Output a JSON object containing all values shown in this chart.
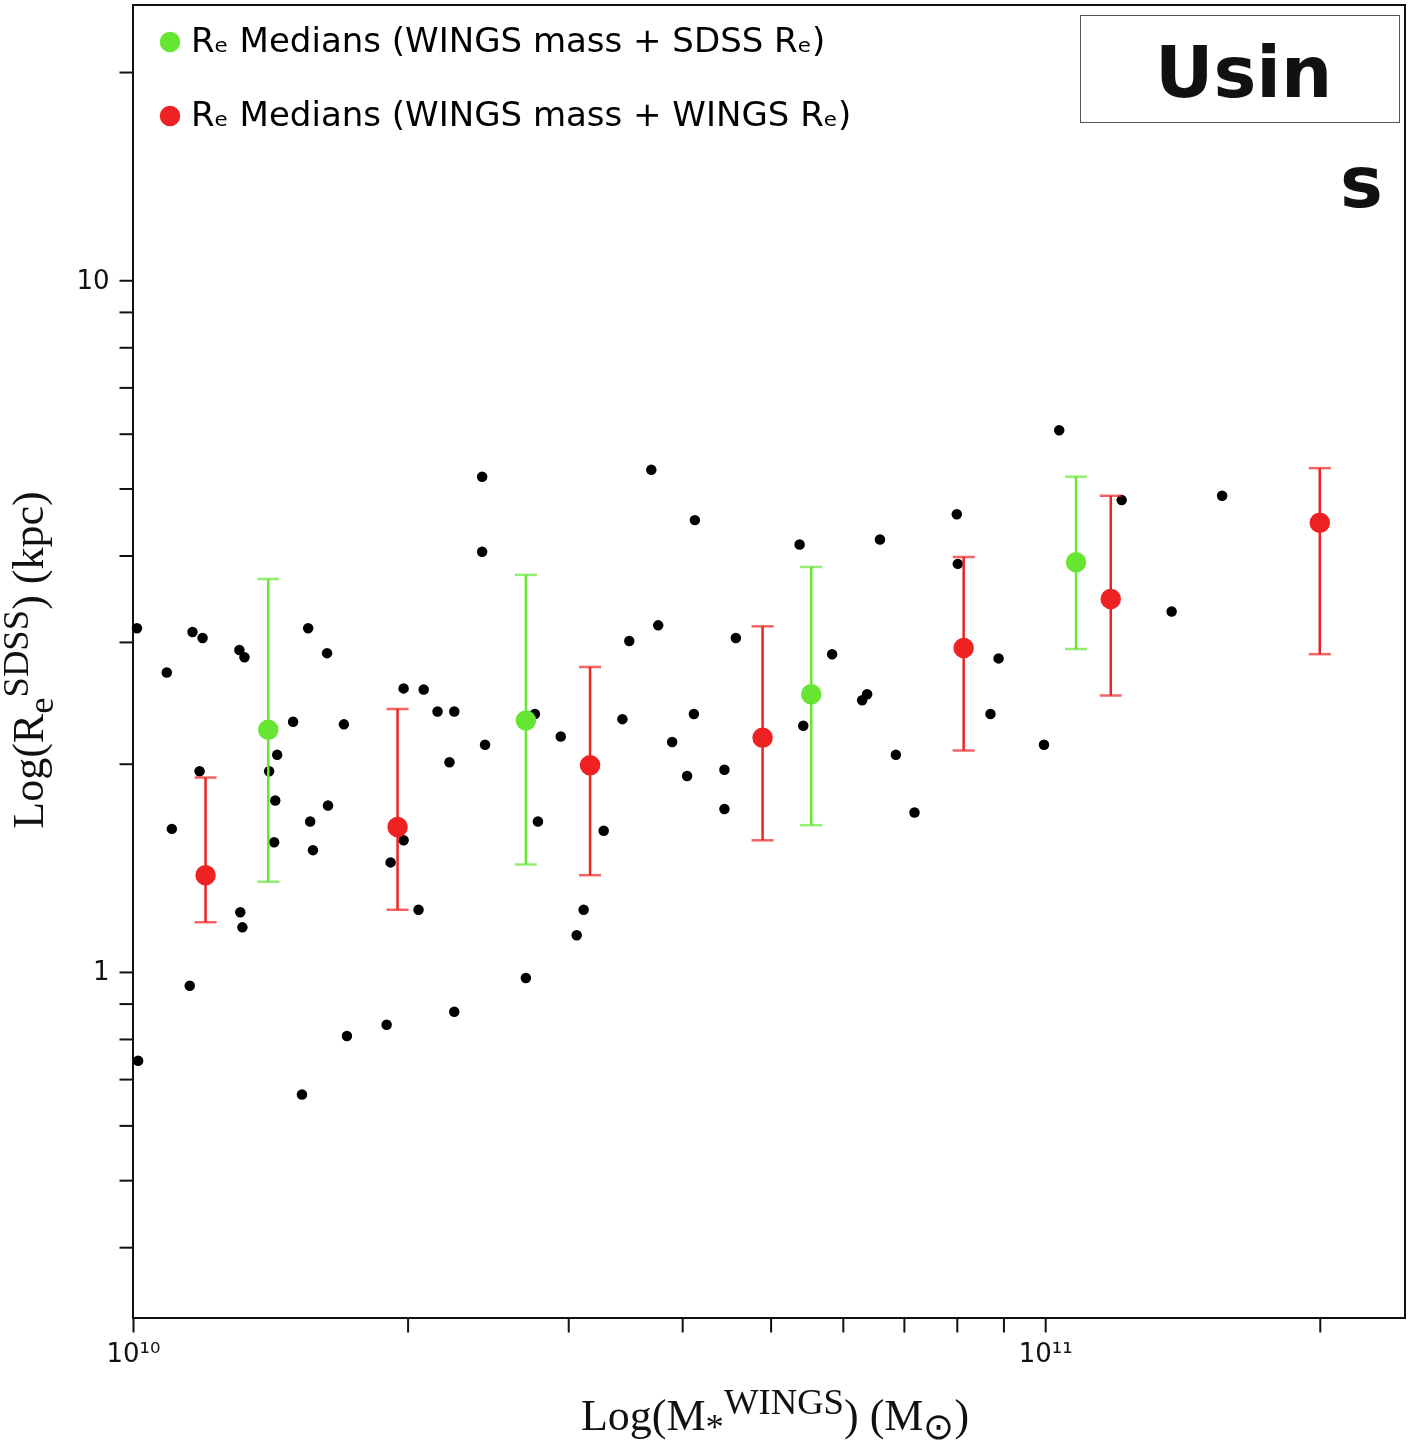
{
  "chart_data": {
    "type": "scatter",
    "xlabel": "Log(M$_{*}$$^{WINGS}$) (M$_{⊙}$)",
    "ylabel": "Log(R$_{e}$$^{SDSS}$) (kpc)",
    "log": "xy",
    "grid": false,
    "legend": "top left",
    "marker": "circle",
    "xlim": [
      10000000000.0,
      248000000000.0
    ],
    "ylim": [
      0.316,
      25
    ],
    "xticks": [
      {
        "value": 10000000000.0,
        "label": "10¹⁰"
      },
      {
        "value": 20000000000.0,
        "label": null
      },
      {
        "value": 30000000000.0,
        "label": null
      },
      {
        "value": 40000000000.0,
        "label": null
      },
      {
        "value": 50000000000.0,
        "label": null
      },
      {
        "value": 60000000000.0,
        "label": null
      },
      {
        "value": 70000000000.0,
        "label": null
      },
      {
        "value": 80000000000.0,
        "label": null
      },
      {
        "value": 90000000000.0,
        "label": null
      },
      {
        "value": 100000000000.0,
        "label": "10¹¹"
      },
      {
        "value": 200000000000.0,
        "label": null
      }
    ],
    "yticks": [
      {
        "value": 0.4,
        "label": null
      },
      {
        "value": 0.5,
        "label": null
      },
      {
        "value": 0.6,
        "label": null
      },
      {
        "value": 0.7,
        "label": null
      },
      {
        "value": 0.8,
        "label": null
      },
      {
        "value": 0.9,
        "label": null
      },
      1,
      {
        "value": 2,
        "label": null
      },
      {
        "value": 3,
        "label": null
      },
      {
        "value": 4,
        "label": null
      },
      {
        "value": 5,
        "label": null
      },
      {
        "value": 6,
        "label": null
      },
      {
        "value": 7,
        "label": null
      },
      {
        "value": 8,
        "label": null
      },
      {
        "value": 9,
        "label": null
      },
      10,
      {
        "value": 20,
        "label": null
      }
    ],
    "annotations": [
      "Usin",
      "s"
    ],
    "series": [
      {
        "color": "#000000",
        "x": [
          10100000000.0,
          10890000000.0,
          11030000000.0,
          11620000000.0,
          11920000000.0,
          11830000000.0,
          11540000000.0,
          13080000000.0,
          13250000000.0,
          13110000000.0,
          13180000000.0,
          14980000000.0,
          14390000000.0,
          14100000000.0,
          14320000000.0,
          14280000000.0,
          15560000000.0,
          15640000000.0,
          15750000000.0,
          16320000000.0,
          16360000000.0,
          17030000000.0,
          17160000000.0,
          15320000000.0,
          18970000000.0,
          19160000000.0,
          19800000000.0,
          19800000000.0,
          20830000000.0,
          20560000000.0,
          21570000000.0,
          22500000000.0,
          22230000000.0,
          22500000000.0,
          24140000000.0,
          24140000000.0,
          24320000000.0,
          27580000000.0,
          27790000000.0,
          26960000000.0,
          29440000000.0,
          31190000000.0,
          30650000000.0,
          32810000000.0,
          34400000000.0,
          35000000000.0,
          37000000000.0,
          37650000000.0,
          39000000000.0,
          41300000000.0,
          41200000000.0,
          40500000000.0,
          44500000000.0,
          44500000000.0,
          45800000000.0,
          53800000000.0,
          54300000000.0,
          58400000000.0,
          63000000000.0,
          63800000000.0,
          65900000000.0,
          68600000000.0,
          71900000000.0,
          80000000000.0,
          80200000000.0,
          88900000000.0,
          87100000000.0,
          99700000000.0,
          103600000000.0,
          121300000000.0,
          137600000000.0,
          156300000000.0,
          10130000000.0
        ],
        "values": [
          3.14,
          2.71,
          1.61,
          3.1,
          3.04,
          1.95,
          0.955,
          2.92,
          2.85,
          1.22,
          1.16,
          2.3,
          2.06,
          1.95,
          1.77,
          1.54,
          3.14,
          1.65,
          1.5,
          2.89,
          1.74,
          2.28,
          0.808,
          0.665,
          0.839,
          1.44,
          2.57,
          1.55,
          2.56,
          1.23,
          2.38,
          2.38,
          2.01,
          0.876,
          5.2,
          4.05,
          2.13,
          2.36,
          1.65,
          0.98,
          2.19,
          1.23,
          1.13,
          1.6,
          2.32,
          3.01,
          5.32,
          3.17,
          2.15,
          4.5,
          2.36,
          1.92,
          1.96,
          1.72,
          3.04,
          4.15,
          2.27,
          2.88,
          2.47,
          2.52,
          4.22,
          2.06,
          1.7,
          4.59,
          3.89,
          2.84,
          2.36,
          2.13,
          6.07,
          4.81,
          3.32,
          4.88,
          0.744
        ]
      },
      {
        "name": "Rₑ Medians (WINGS mass + SDSS Rₑ)",
        "color": "#66e633",
        "x": [
          14070000000.0,
          26960000000.0,
          55400000000.0,
          108100000000.0
        ],
        "values": [
          2.24,
          2.31,
          2.52,
          3.91
        ],
        "errors": [
          [
            1.35,
            3.7
          ],
          [
            1.43,
            3.75
          ],
          [
            1.63,
            3.85
          ],
          [
            2.93,
            5.2
          ]
        ]
      },
      {
        "name": "Rₑ Medians (WINGS mass + WINGS Rₑ)",
        "color": "#ee2222",
        "x": [
          12010000000.0,
          19500000000.0,
          31700000000.0,
          49000000000.0,
          81400000000.0,
          118000000000.0,
          200000000000.0
        ],
        "values": [
          1.38,
          1.62,
          1.99,
          2.18,
          2.94,
          3.46,
          4.46
        ],
        "errors": [
          [
            1.18,
            1.91
          ],
          [
            1.23,
            2.4
          ],
          [
            1.38,
            2.76
          ],
          [
            1.55,
            3.16
          ],
          [
            2.09,
            3.98
          ],
          [
            2.51,
            4.88
          ],
          [
            2.88,
            5.35
          ]
        ]
      }
    ]
  }
}
